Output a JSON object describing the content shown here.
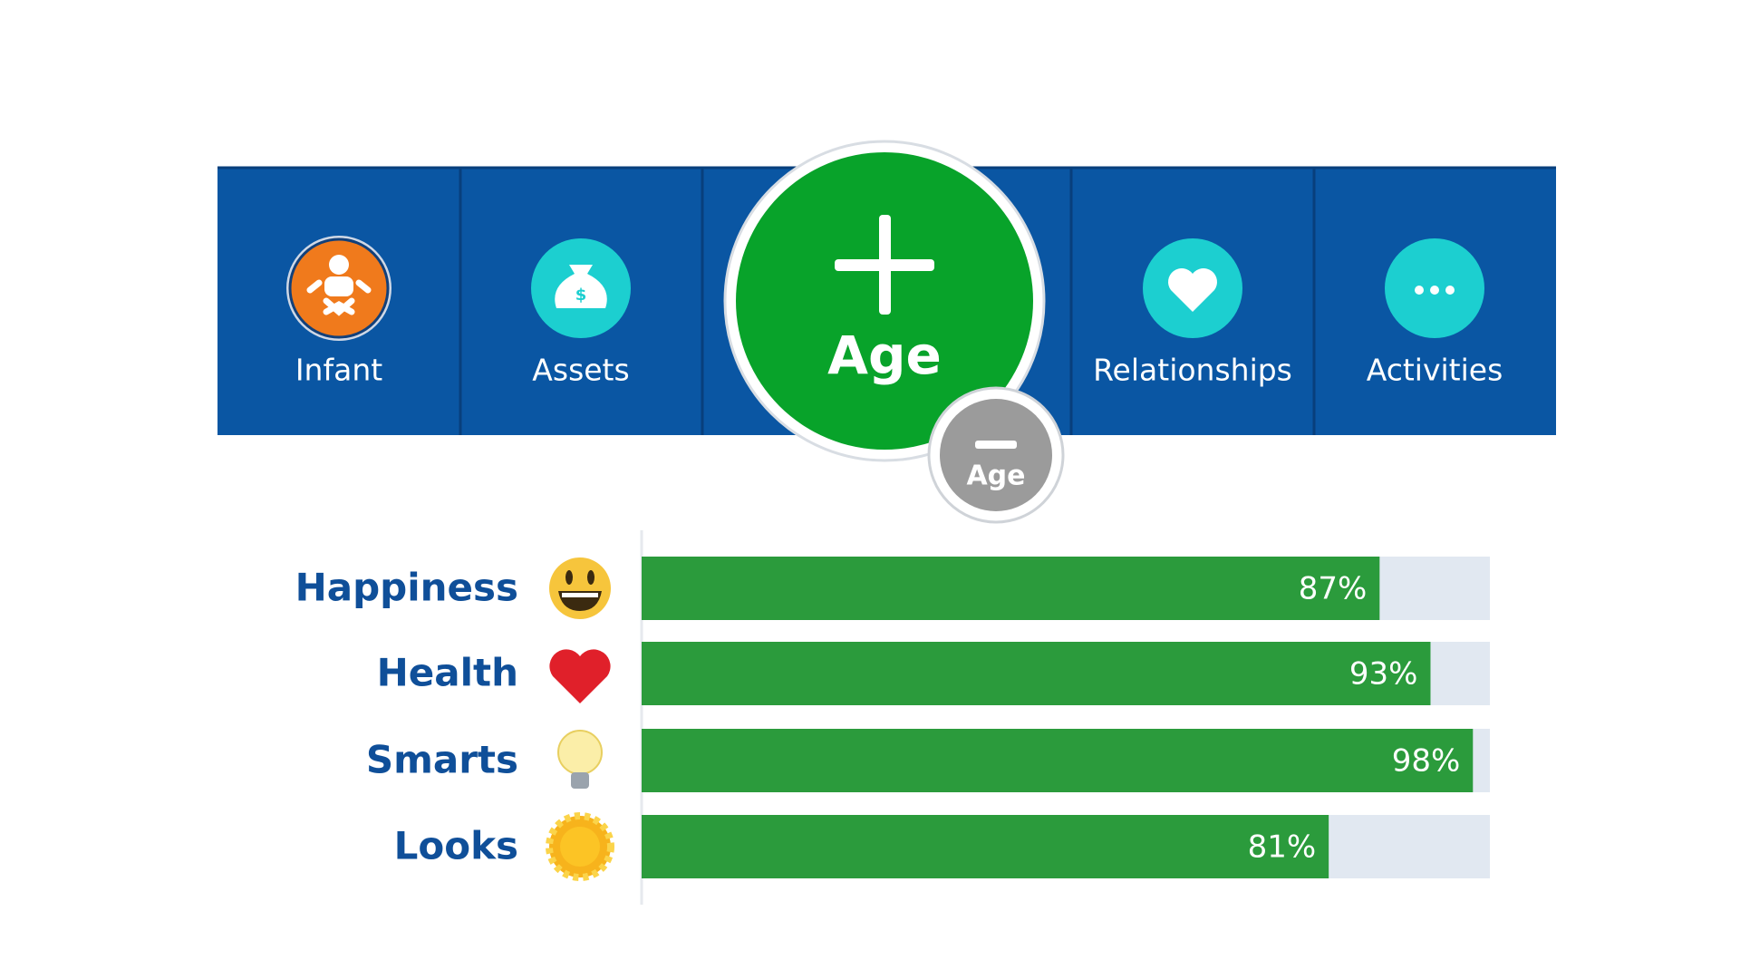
{
  "nav": {
    "tabs": [
      "Infant",
      "Assets",
      "Relationships",
      "Activities"
    ],
    "age_button": "Age",
    "age_minus_button": "Age"
  },
  "stats": {
    "labels": [
      "Happiness",
      "Health",
      "Smarts",
      "Looks"
    ],
    "values": [
      87,
      93,
      98,
      81
    ],
    "value_labels": [
      "87%",
      "93%",
      "98%",
      "81%"
    ],
    "xlim": [
      0,
      100
    ]
  }
}
